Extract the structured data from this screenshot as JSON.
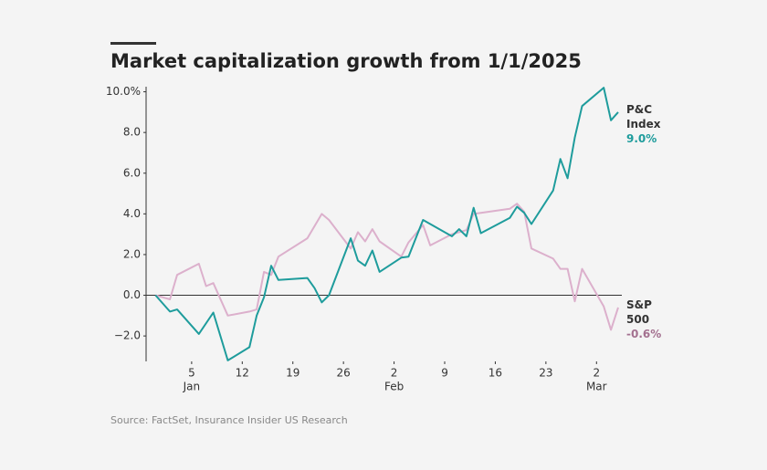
{
  "chart_data": {
    "type": "line",
    "title": "Market capitalization growth from 1/1/2025",
    "source": "Source: FactSet, Insurance Insider US Research",
    "xlim": [
      -1.3,
      64.5
    ],
    "xticks": [
      {
        "value": 5,
        "label": "5"
      },
      {
        "value": 12,
        "label": "12"
      },
      {
        "value": 19,
        "label": "19"
      },
      {
        "value": 26,
        "label": "26"
      },
      {
        "value": 33,
        "label": "2"
      },
      {
        "value": 40,
        "label": "9"
      },
      {
        "value": 47,
        "label": "16"
      },
      {
        "value": 54,
        "label": "23"
      },
      {
        "value": 61,
        "label": "2"
      }
    ],
    "month_labels": [
      {
        "value": 5,
        "label": "Jan"
      },
      {
        "value": 33,
        "label": "Feb"
      },
      {
        "value": 61,
        "label": "Mar"
      }
    ],
    "ylim": [
      -3.25,
      10.25
    ],
    "yticks": [
      {
        "value": -2,
        "label": "−2.0"
      },
      {
        "value": 0,
        "label": "0.0"
      },
      {
        "value": 2,
        "label": "2.0"
      },
      {
        "value": 4,
        "label": "4.0"
      },
      {
        "value": 6,
        "label": "6.0"
      },
      {
        "value": 8,
        "label": "8.0"
      },
      {
        "value": 10,
        "label": "10.0%"
      }
    ],
    "series": [
      {
        "name": "P&C Index",
        "color": "#1e9c9c",
        "end_label": "9.0%",
        "end_label_color": "#1e9c9c",
        "x": [
          0,
          2,
          3,
          6,
          8,
          10,
          13,
          14,
          15,
          16,
          17,
          21,
          22,
          23,
          24,
          27,
          28,
          29,
          30,
          31,
          34,
          35,
          37,
          41,
          42,
          43,
          44,
          45,
          49,
          50,
          51,
          52,
          55,
          56,
          57,
          58,
          59,
          62,
          63,
          64
        ],
        "values": [
          0,
          -0.8,
          -0.7,
          -1.9,
          -0.85,
          -3.2,
          -2.55,
          -1.0,
          -0.1,
          1.45,
          0.75,
          0.85,
          0.35,
          -0.35,
          0,
          2.8,
          1.7,
          1.45,
          2.2,
          1.15,
          1.85,
          1.9,
          3.7,
          2.9,
          3.25,
          2.9,
          4.3,
          3.05,
          3.8,
          4.35,
          4.05,
          3.5,
          5.15,
          6.7,
          5.75,
          7.75,
          9.3,
          10.2,
          8.6,
          9.0
        ]
      },
      {
        "name": "S&P 500",
        "color": "#dcb0cc",
        "end_label": "-0.6%",
        "end_label_color": "#a3708f",
        "x": [
          0,
          2,
          3,
          6,
          7,
          8,
          10,
          13,
          14,
          15,
          16,
          17,
          21,
          23,
          24,
          27,
          28,
          29,
          30,
          31,
          34,
          35,
          37,
          38,
          41,
          43,
          44,
          49,
          50,
          51,
          52,
          55,
          56,
          57,
          58,
          59,
          62,
          63,
          64
        ],
        "values": [
          0,
          -0.2,
          1.0,
          1.55,
          0.45,
          0.6,
          -1.0,
          -0.8,
          -0.7,
          1.15,
          1.0,
          1.9,
          2.8,
          4.0,
          3.7,
          2.3,
          3.1,
          2.65,
          3.25,
          2.65,
          1.9,
          2.6,
          3.45,
          2.45,
          3.0,
          3.2,
          4.0,
          4.25,
          4.5,
          4.1,
          2.3,
          1.8,
          1.3,
          1.3,
          -0.3,
          1.3,
          -0.55,
          -1.7,
          -0.6
        ]
      }
    ]
  }
}
